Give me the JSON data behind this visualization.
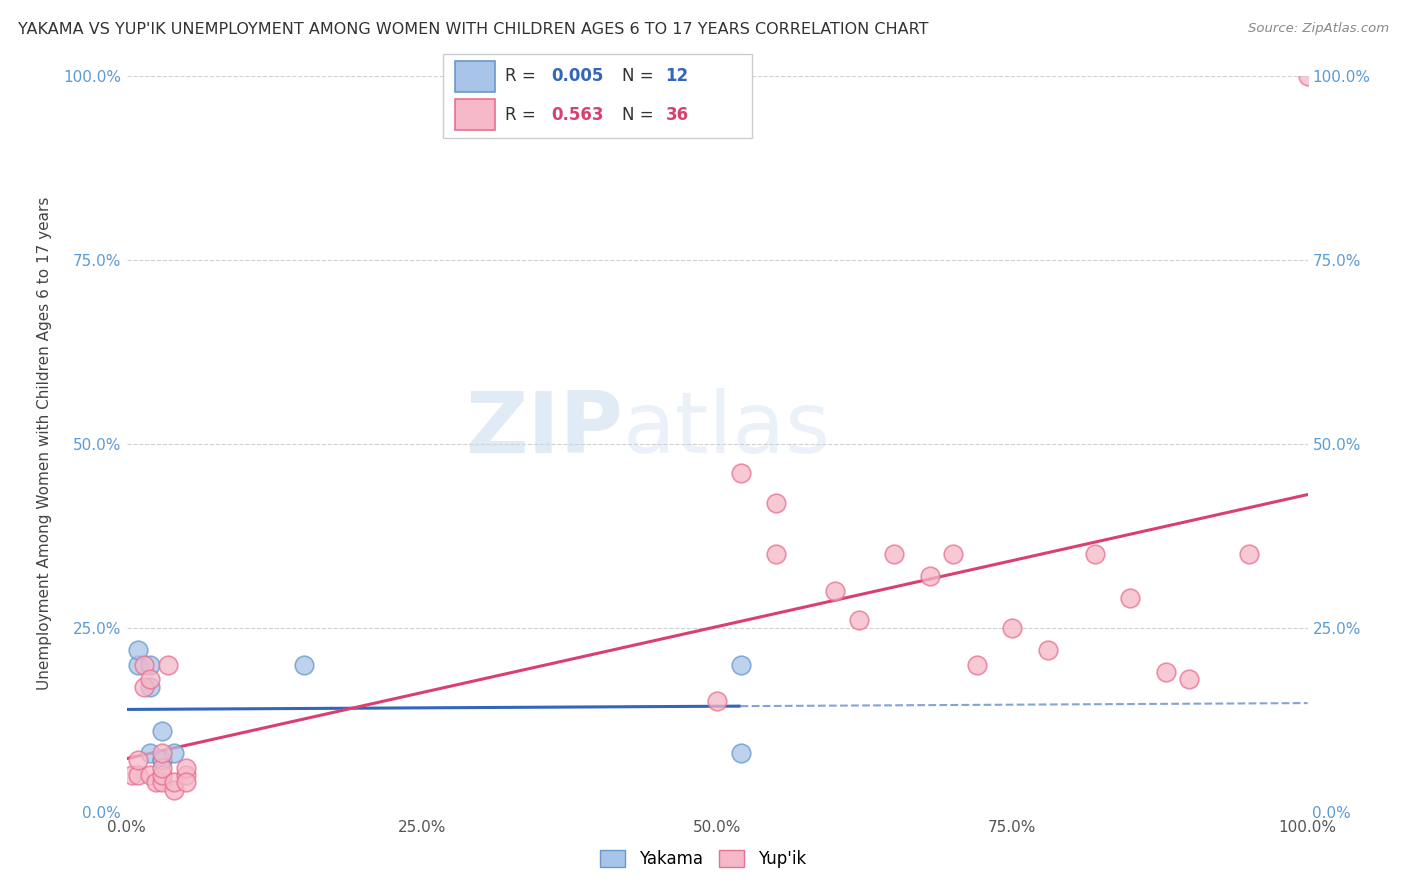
{
  "title": "YAKAMA VS YUP'IK UNEMPLOYMENT AMONG WOMEN WITH CHILDREN AGES 6 TO 17 YEARS CORRELATION CHART",
  "source": "Source: ZipAtlas.com",
  "ylabel": "Unemployment Among Women with Children Ages 6 to 17 years",
  "watermark_zip": "ZIP",
  "watermark_atlas": "atlas",
  "yakama": {
    "label": "Yakama",
    "R": 0.005,
    "N": 12,
    "dot_color": "#a8c4e8",
    "edge_color": "#6699cc",
    "line_color": "#3366bb",
    "x": [
      0.01,
      0.01,
      0.02,
      0.02,
      0.02,
      0.03,
      0.03,
      0.03,
      0.04,
      0.15,
      0.52,
      0.52
    ],
    "y": [
      0.2,
      0.22,
      0.17,
      0.2,
      0.08,
      0.07,
      0.07,
      0.11,
      0.08,
      0.2,
      0.08,
      0.2
    ]
  },
  "yupik": {
    "label": "Yup'ik",
    "R": 0.563,
    "N": 36,
    "dot_color": "#f5b8c8",
    "edge_color": "#e87090",
    "line_color": "#d94070",
    "x": [
      0.005,
      0.01,
      0.01,
      0.015,
      0.015,
      0.02,
      0.02,
      0.025,
      0.03,
      0.03,
      0.03,
      0.03,
      0.035,
      0.04,
      0.04,
      0.05,
      0.05,
      0.05,
      0.5,
      0.52,
      0.55,
      0.55,
      0.6,
      0.62,
      0.65,
      0.68,
      0.7,
      0.72,
      0.75,
      0.78,
      0.82,
      0.85,
      0.88,
      0.9,
      0.95,
      1.0
    ],
    "y": [
      0.05,
      0.05,
      0.07,
      0.17,
      0.2,
      0.18,
      0.05,
      0.04,
      0.04,
      0.05,
      0.06,
      0.08,
      0.2,
      0.03,
      0.04,
      0.05,
      0.06,
      0.04,
      0.15,
      0.46,
      0.42,
      0.35,
      0.3,
      0.26,
      0.35,
      0.32,
      0.35,
      0.2,
      0.25,
      0.22,
      0.35,
      0.29,
      0.19,
      0.18,
      0.35,
      1.0
    ]
  },
  "xlim": [
    0.0,
    1.0
  ],
  "ylim": [
    0.0,
    1.0
  ],
  "xticks": [
    0.0,
    0.25,
    0.5,
    0.75,
    1.0
  ],
  "ytick_values": [
    0.0,
    0.25,
    0.5,
    0.75,
    1.0
  ],
  "background_color": "#ffffff",
  "grid_color": "#cccccc",
  "yakama_line_xmax": 0.52,
  "dashed_line_xmin": 0.52,
  "dashed_line_xmax": 1.0
}
